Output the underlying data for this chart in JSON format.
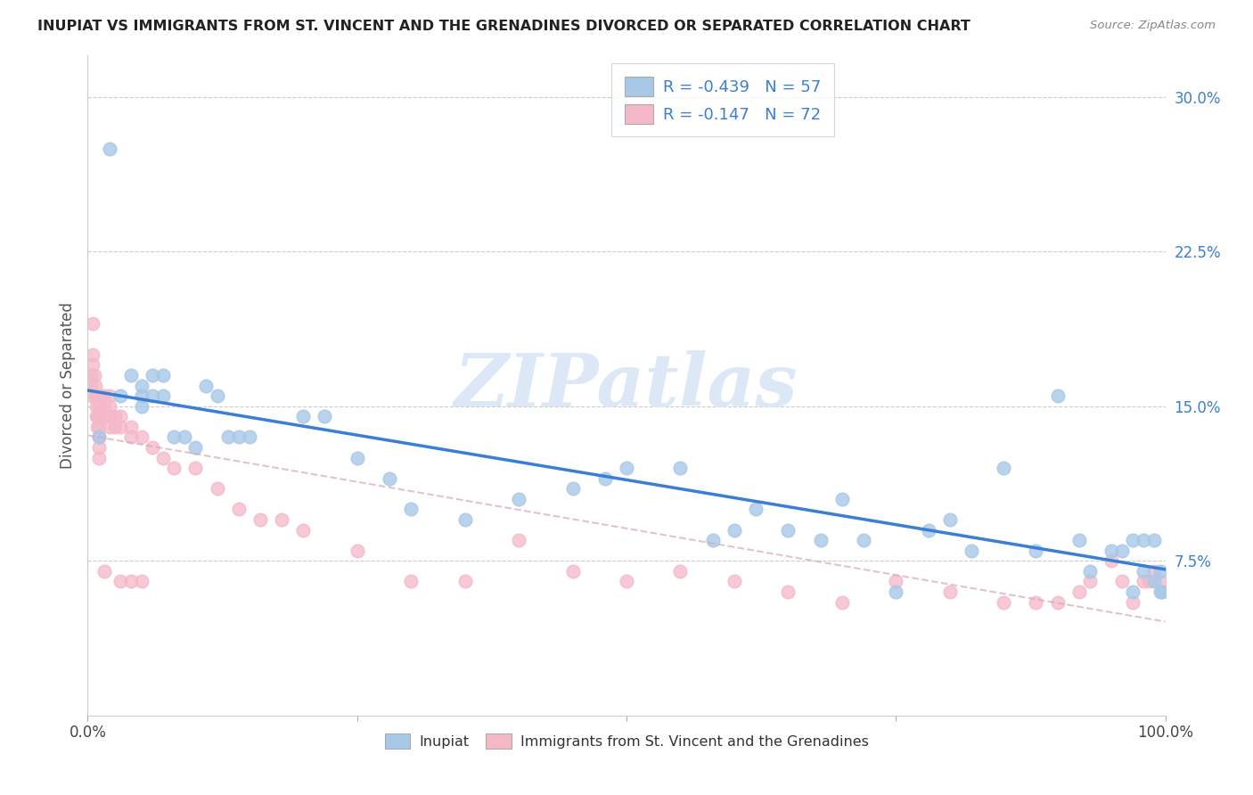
{
  "title": "INUPIAT VS IMMIGRANTS FROM ST. VINCENT AND THE GRENADINES DIVORCED OR SEPARATED CORRELATION CHART",
  "source": "Source: ZipAtlas.com",
  "ylabel": "Divorced or Separated",
  "xlim": [
    0.0,
    1.0
  ],
  "ylim": [
    0.0,
    0.32
  ],
  "xticks": [
    0.0,
    0.25,
    0.5,
    0.75,
    1.0
  ],
  "xticklabels": [
    "0.0%",
    "",
    "",
    "",
    "100.0%"
  ],
  "yticks": [
    0.075,
    0.15,
    0.225,
    0.3
  ],
  "yticklabels": [
    "7.5%",
    "15.0%",
    "22.5%",
    "30.0%"
  ],
  "inupiat_color": "#a8c8e8",
  "svg_color": "#f4b8c8",
  "trendline_inupiat_color": "#3a7fd5",
  "trendline_svg_color": "#d8a8b8",
  "legend_text_1": "R = -0.439   N = 57",
  "legend_text_2": "R = -0.147   N = 72",
  "legend_label_inupiat": "Inupiat",
  "legend_label_svg": "Immigrants from St. Vincent and the Grenadines",
  "watermark": "ZIPatlas",
  "inupiat_x": [
    0.01,
    0.02,
    0.03,
    0.04,
    0.05,
    0.05,
    0.05,
    0.06,
    0.06,
    0.07,
    0.07,
    0.08,
    0.09,
    0.1,
    0.11,
    0.12,
    0.13,
    0.14,
    0.15,
    0.2,
    0.22,
    0.25,
    0.28,
    0.3,
    0.35,
    0.4,
    0.45,
    0.48,
    0.5,
    0.55,
    0.58,
    0.6,
    0.62,
    0.65,
    0.68,
    0.7,
    0.72,
    0.75,
    0.78,
    0.8,
    0.82,
    0.85,
    0.88,
    0.9,
    0.92,
    0.93,
    0.95,
    0.96,
    0.97,
    0.97,
    0.98,
    0.98,
    0.99,
    0.99,
    0.995,
    0.995,
    0.997
  ],
  "inupiat_y": [
    0.135,
    0.275,
    0.155,
    0.165,
    0.16,
    0.155,
    0.15,
    0.165,
    0.155,
    0.165,
    0.155,
    0.135,
    0.135,
    0.13,
    0.16,
    0.155,
    0.135,
    0.135,
    0.135,
    0.145,
    0.145,
    0.125,
    0.115,
    0.1,
    0.095,
    0.105,
    0.11,
    0.115,
    0.12,
    0.12,
    0.085,
    0.09,
    0.1,
    0.09,
    0.085,
    0.105,
    0.085,
    0.06,
    0.09,
    0.095,
    0.08,
    0.12,
    0.08,
    0.155,
    0.085,
    0.07,
    0.08,
    0.08,
    0.085,
    0.06,
    0.085,
    0.07,
    0.085,
    0.065,
    0.06,
    0.07,
    0.06
  ],
  "svg_x": [
    0.003,
    0.003,
    0.004,
    0.005,
    0.005,
    0.005,
    0.006,
    0.007,
    0.007,
    0.008,
    0.008,
    0.008,
    0.009,
    0.009,
    0.01,
    0.01,
    0.01,
    0.01,
    0.01,
    0.01,
    0.01,
    0.015,
    0.015,
    0.015,
    0.015,
    0.02,
    0.02,
    0.02,
    0.02,
    0.025,
    0.025,
    0.03,
    0.03,
    0.03,
    0.04,
    0.04,
    0.04,
    0.05,
    0.05,
    0.06,
    0.07,
    0.08,
    0.1,
    0.12,
    0.14,
    0.16,
    0.18,
    0.2,
    0.25,
    0.3,
    0.35,
    0.4,
    0.45,
    0.5,
    0.55,
    0.6,
    0.65,
    0.7,
    0.75,
    0.8,
    0.85,
    0.88,
    0.9,
    0.92,
    0.93,
    0.95,
    0.96,
    0.97,
    0.98,
    0.985,
    0.99,
    0.995
  ],
  "svg_y": [
    0.165,
    0.16,
    0.155,
    0.19,
    0.175,
    0.17,
    0.165,
    0.16,
    0.155,
    0.155,
    0.15,
    0.145,
    0.145,
    0.14,
    0.155,
    0.15,
    0.145,
    0.14,
    0.135,
    0.13,
    0.125,
    0.155,
    0.15,
    0.145,
    0.07,
    0.155,
    0.15,
    0.145,
    0.14,
    0.145,
    0.14,
    0.145,
    0.14,
    0.065,
    0.14,
    0.135,
    0.065,
    0.135,
    0.065,
    0.13,
    0.125,
    0.12,
    0.12,
    0.11,
    0.1,
    0.095,
    0.095,
    0.09,
    0.08,
    0.065,
    0.065,
    0.085,
    0.07,
    0.065,
    0.07,
    0.065,
    0.06,
    0.055,
    0.065,
    0.06,
    0.055,
    0.055,
    0.055,
    0.06,
    0.065,
    0.075,
    0.065,
    0.055,
    0.065,
    0.065,
    0.07,
    0.065
  ]
}
